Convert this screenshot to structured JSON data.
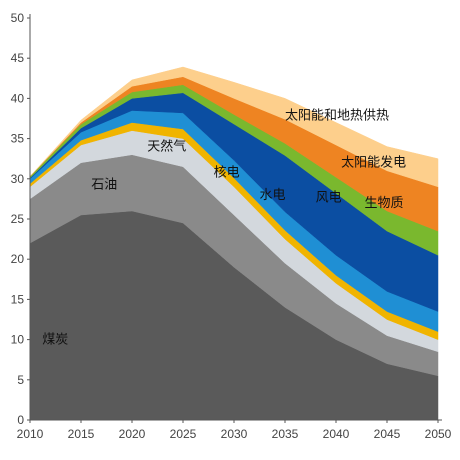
{
  "chart_data": {
    "type": "area",
    "stacked": true,
    "title": "",
    "xlabel": "",
    "ylabel": "",
    "xlim": [
      2010,
      2050
    ],
    "ylim": [
      0,
      50
    ],
    "grid": false,
    "legend": "inline labels",
    "x": [
      2010,
      2015,
      2020,
      2025,
      2030,
      2035,
      2040,
      2045,
      2050
    ],
    "x_ticks": [
      "2010",
      "2015",
      "2020",
      "2025",
      "2030",
      "2035",
      "2040",
      "2045",
      "2050"
    ],
    "y_ticks": [
      "0",
      "5",
      "10",
      "15",
      "20",
      "25",
      "30",
      "35",
      "40",
      "45",
      "50"
    ],
    "series": [
      {
        "name": "煤炭",
        "color": "#5a5a5a",
        "values": [
          22,
          25.5,
          26,
          24.5,
          19,
          14,
          10,
          7,
          5.5
        ]
      },
      {
        "name": "石油",
        "color": "#8a8a8a",
        "values": [
          5.5,
          6.5,
          7,
          7,
          6.5,
          5.5,
          4.5,
          3.5,
          3
        ]
      },
      {
        "name": "天然气",
        "color": "#d3d8dd",
        "values": [
          1.5,
          2.2,
          3,
          3.5,
          3.5,
          3,
          2.5,
          2,
          1.5
        ]
      },
      {
        "name": "核电",
        "color": "#f0b400",
        "values": [
          0.4,
          0.6,
          1,
          1.2,
          1.1,
          1.1,
          1,
          1,
          1
        ]
      },
      {
        "name": "水电",
        "color": "#1f8fd4",
        "values": [
          0.6,
          1,
          1.5,
          2,
          2.2,
          2.3,
          2.5,
          2.5,
          2.5
        ]
      },
      {
        "name": "风电",
        "color": "#0b4ea2",
        "values": [
          0.1,
          0.5,
          1.5,
          2.5,
          4.5,
          7,
          7.7,
          7.5,
          7
        ]
      },
      {
        "name": "生物质",
        "color": "#7ab82e",
        "values": [
          0.2,
          0.5,
          0.8,
          1,
          1.2,
          1.5,
          2,
          2.5,
          3
        ]
      },
      {
        "name": "太阳能发电",
        "color": "#ee8422",
        "values": [
          0,
          0.2,
          0.7,
          1,
          2,
          3,
          4,
          5,
          5.5
        ]
      },
      {
        "name": "太阳能和地热供热",
        "color": "#fdcf8c",
        "values": [
          0,
          0.3,
          0.8,
          1.2,
          2,
          2.6,
          2.8,
          3,
          3.5
        ]
      }
    ],
    "labels": [
      {
        "series": "煤炭",
        "text": "煤炭",
        "x": 2011.2,
        "y": 9.5,
        "light": false
      },
      {
        "series": "石油",
        "text": "石油",
        "x": 2016,
        "y": 28.8,
        "light": false
      },
      {
        "series": "天然气",
        "text": "天然气",
        "x": 2021.5,
        "y": 33.5,
        "light": false
      },
      {
        "series": "核电",
        "text": "核电",
        "x": 2028,
        "y": 30.3,
        "light": false
      },
      {
        "series": "水电",
        "text": "水电",
        "x": 2032.5,
        "y": 27.5,
        "light": false
      },
      {
        "series": "风电",
        "text": "风电",
        "x": 2038,
        "y": 27.2,
        "light": false
      },
      {
        "series": "生物质",
        "text": "生物质",
        "x": 2042.8,
        "y": 26.5,
        "light": false
      },
      {
        "series": "太阳能发电",
        "text": "太阳能发电",
        "x": 2040.5,
        "y": 31.5,
        "light": false
      },
      {
        "series": "太阳能和地热供热",
        "text": "太阳能和地热供热",
        "x": 2035,
        "y": 37.4,
        "light": false
      }
    ]
  }
}
